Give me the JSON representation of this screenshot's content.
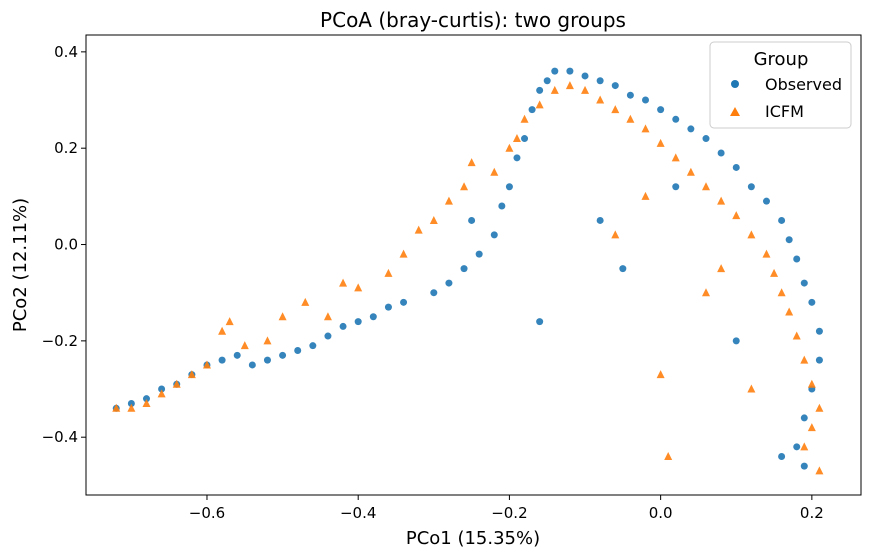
{
  "chart_data": {
    "type": "scatter",
    "title": "PCoA (bray-curtis): two groups",
    "xlabel": "PCo1 (15.35%)",
    "ylabel": "PCo2 (12.11%)",
    "xlim": [
      -0.76,
      0.265
    ],
    "ylim": [
      -0.52,
      0.435
    ],
    "xticks": [
      -0.6,
      -0.4,
      -0.2,
      0.0,
      0.2
    ],
    "xtick_labels": [
      "−0.6",
      "−0.4",
      "−0.2",
      "0.0",
      "0.2"
    ],
    "yticks": [
      -0.4,
      -0.2,
      0.0,
      0.2,
      0.4
    ],
    "ytick_labels": [
      "−0.4",
      "−0.2",
      "0.0",
      "0.2",
      "0.4"
    ],
    "grid": false,
    "legend": {
      "title": "Group",
      "placement": "top-right",
      "entries": [
        "Observed",
        "ICFM"
      ]
    },
    "series": [
      {
        "name": "Observed",
        "marker": "circle",
        "color": "#1f77b4",
        "points": [
          [
            -0.72,
            -0.34
          ],
          [
            -0.7,
            -0.33
          ],
          [
            -0.68,
            -0.32
          ],
          [
            -0.66,
            -0.3
          ],
          [
            -0.64,
            -0.29
          ],
          [
            -0.62,
            -0.27
          ],
          [
            -0.6,
            -0.25
          ],
          [
            -0.58,
            -0.24
          ],
          [
            -0.56,
            -0.23
          ],
          [
            -0.54,
            -0.25
          ],
          [
            -0.52,
            -0.24
          ],
          [
            -0.5,
            -0.23
          ],
          [
            -0.48,
            -0.22
          ],
          [
            -0.46,
            -0.21
          ],
          [
            -0.44,
            -0.19
          ],
          [
            -0.42,
            -0.17
          ],
          [
            -0.4,
            -0.16
          ],
          [
            -0.38,
            -0.15
          ],
          [
            -0.36,
            -0.13
          ],
          [
            -0.34,
            -0.12
          ],
          [
            -0.3,
            -0.1
          ],
          [
            -0.28,
            -0.08
          ],
          [
            -0.26,
            -0.05
          ],
          [
            -0.24,
            -0.02
          ],
          [
            -0.22,
            0.02
          ],
          [
            -0.21,
            0.08
          ],
          [
            -0.2,
            0.12
          ],
          [
            -0.19,
            0.18
          ],
          [
            -0.18,
            0.22
          ],
          [
            -0.17,
            0.28
          ],
          [
            -0.16,
            0.32
          ],
          [
            -0.15,
            0.34
          ],
          [
            -0.14,
            0.36
          ],
          [
            -0.12,
            0.36
          ],
          [
            -0.1,
            0.35
          ],
          [
            -0.08,
            0.34
          ],
          [
            -0.06,
            0.33
          ],
          [
            -0.04,
            0.31
          ],
          [
            -0.02,
            0.3
          ],
          [
            0.0,
            0.28
          ],
          [
            0.02,
            0.26
          ],
          [
            0.04,
            0.24
          ],
          [
            0.06,
            0.22
          ],
          [
            0.08,
            0.19
          ],
          [
            0.1,
            0.16
          ],
          [
            0.12,
            0.12
          ],
          [
            0.14,
            0.09
          ],
          [
            0.16,
            0.05
          ],
          [
            0.17,
            0.01
          ],
          [
            0.18,
            -0.03
          ],
          [
            0.19,
            -0.08
          ],
          [
            0.2,
            -0.12
          ],
          [
            0.21,
            -0.18
          ],
          [
            0.21,
            -0.24
          ],
          [
            0.2,
            -0.3
          ],
          [
            0.19,
            -0.36
          ],
          [
            0.18,
            -0.42
          ],
          [
            0.19,
            -0.46
          ],
          [
            -0.16,
            -0.16
          ],
          [
            0.16,
            -0.44
          ],
          [
            -0.08,
            0.05
          ],
          [
            0.02,
            0.12
          ],
          [
            -0.05,
            -0.05
          ],
          [
            0.1,
            -0.2
          ],
          [
            -0.25,
            0.05
          ]
        ]
      },
      {
        "name": "ICFM",
        "marker": "triangle",
        "color": "#ff7f0e",
        "points": [
          [
            -0.72,
            -0.34
          ],
          [
            -0.7,
            -0.34
          ],
          [
            -0.68,
            -0.33
          ],
          [
            -0.66,
            -0.31
          ],
          [
            -0.64,
            -0.29
          ],
          [
            -0.62,
            -0.27
          ],
          [
            -0.6,
            -0.25
          ],
          [
            -0.58,
            -0.18
          ],
          [
            -0.57,
            -0.16
          ],
          [
            -0.55,
            -0.21
          ],
          [
            -0.52,
            -0.2
          ],
          [
            -0.5,
            -0.15
          ],
          [
            -0.47,
            -0.12
          ],
          [
            -0.44,
            -0.15
          ],
          [
            -0.42,
            -0.08
          ],
          [
            -0.4,
            -0.09
          ],
          [
            -0.36,
            -0.06
          ],
          [
            -0.34,
            -0.02
          ],
          [
            -0.32,
            0.03
          ],
          [
            -0.3,
            0.05
          ],
          [
            -0.28,
            0.09
          ],
          [
            -0.26,
            0.12
          ],
          [
            -0.25,
            0.17
          ],
          [
            -0.22,
            0.15
          ],
          [
            -0.2,
            0.2
          ],
          [
            -0.19,
            0.22
          ],
          [
            -0.18,
            0.26
          ],
          [
            -0.16,
            0.29
          ],
          [
            -0.14,
            0.32
          ],
          [
            -0.12,
            0.33
          ],
          [
            -0.1,
            0.32
          ],
          [
            -0.08,
            0.3
          ],
          [
            -0.06,
            0.28
          ],
          [
            -0.04,
            0.26
          ],
          [
            -0.02,
            0.24
          ],
          [
            0.0,
            0.21
          ],
          [
            0.02,
            0.18
          ],
          [
            0.04,
            0.15
          ],
          [
            0.06,
            0.12
          ],
          [
            0.08,
            0.09
          ],
          [
            0.1,
            0.06
          ],
          [
            0.12,
            0.02
          ],
          [
            0.14,
            -0.02
          ],
          [
            0.15,
            -0.06
          ],
          [
            0.16,
            -0.1
          ],
          [
            0.17,
            -0.14
          ],
          [
            0.18,
            -0.19
          ],
          [
            0.19,
            -0.24
          ],
          [
            0.2,
            -0.29
          ],
          [
            0.21,
            -0.34
          ],
          [
            0.2,
            -0.38
          ],
          [
            0.19,
            -0.42
          ],
          [
            0.21,
            -0.47
          ],
          [
            0.0,
            -0.27
          ],
          [
            0.01,
            -0.44
          ],
          [
            -0.06,
            0.02
          ],
          [
            0.06,
            -0.1
          ],
          [
            0.12,
            -0.3
          ],
          [
            -0.02,
            0.1
          ],
          [
            0.08,
            -0.05
          ]
        ]
      }
    ]
  }
}
